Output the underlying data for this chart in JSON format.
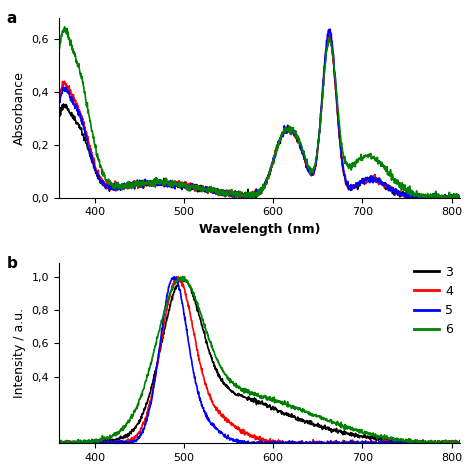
{
  "top_panel_label": "a",
  "bottom_panel_label": "b",
  "abs_xlabel": "Wavelength (nm)",
  "abs_ylabel": "Absorbance",
  "em_ylabel": "Intensity / a.u.",
  "abs_xlim": [
    360,
    810
  ],
  "abs_ylim": [
    0.0,
    0.68
  ],
  "em_xlim": [
    360,
    810
  ],
  "em_ylim": [
    0.0,
    1.08
  ],
  "abs_xticks": [
    400,
    500,
    600,
    700,
    800
  ],
  "em_xticks": [
    400,
    500,
    600,
    700,
    800
  ],
  "abs_yticks": [
    0.0,
    0.2,
    0.4,
    0.6
  ],
  "em_yticks": [
    0.4,
    0.6,
    0.8,
    1.0
  ],
  "colors": {
    "3": "#000000",
    "4": "#ff0000",
    "5": "#0000ff",
    "6": "#008000"
  },
  "legend_labels": [
    "3",
    "4",
    "5",
    "6"
  ],
  "linewidth": 1.2,
  "background": "#ffffff"
}
